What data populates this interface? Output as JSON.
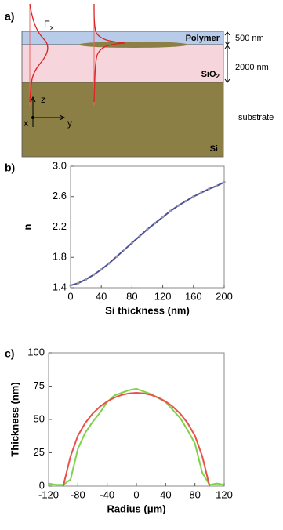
{
  "panel_labels": [
    "a)",
    "b)",
    "c)"
  ],
  "diagram": {
    "field_label": {
      "main": "E",
      "sub": "x"
    },
    "layers": [
      {
        "name": "Polymer",
        "thickness": "500 nm"
      },
      {
        "name": {
          "main": "SiO",
          "sub": "2"
        },
        "thickness": "2000 nm"
      },
      {
        "name": "Si",
        "thickness": "substrate"
      }
    ],
    "axes": [
      "z",
      "x",
      "y"
    ]
  },
  "chart_data": [
    {
      "type": "line",
      "xlabel": "Si thickness (nm)",
      "ylabel": "n",
      "x": [
        0,
        10,
        20,
        30,
        40,
        50,
        60,
        70,
        80,
        90,
        100,
        110,
        120,
        130,
        140,
        150,
        160,
        170,
        180,
        190,
        200
      ],
      "series": [
        {
          "color": "#4b4f9e",
          "marker_color": "#9a9a9a",
          "values": [
            1.43,
            1.46,
            1.51,
            1.57,
            1.64,
            1.72,
            1.81,
            1.9,
            1.99,
            2.08,
            2.17,
            2.25,
            2.33,
            2.41,
            2.48,
            2.54,
            2.6,
            2.65,
            2.7,
            2.74,
            2.79
          ]
        }
      ],
      "xlim": [
        0,
        200
      ],
      "xticks": [
        0,
        40,
        80,
        120,
        160,
        200
      ],
      "ylim": [
        1.4,
        3
      ],
      "yticks": [
        1.4,
        1.8,
        2.2,
        2.6,
        {
          "value": 3,
          "label": "3.0"
        }
      ]
    },
    {
      "type": "line",
      "xlabel": "Radius (μm)",
      "ylabel": "Thickness (nm)",
      "x": [
        -120,
        -110,
        -100,
        -90,
        -80,
        -70,
        -60,
        -50,
        -40,
        -30,
        -20,
        -10,
        0,
        10,
        20,
        30,
        40,
        50,
        60,
        70,
        80,
        90,
        100,
        110,
        120
      ],
      "series": [
        {
          "color": "#7ed348",
          "values": [
            2,
            1,
            1,
            5,
            28,
            40,
            48,
            55,
            63,
            68,
            70,
            72,
            73,
            71,
            69,
            66,
            63,
            57,
            51,
            42,
            32,
            10,
            1,
            2,
            1
          ]
        },
        {
          "color": "#e8504a",
          "values": [
            null,
            null,
            0,
            22.4,
            37.8,
            47.3,
            54.3,
            59.5,
            63.5,
            66.4,
            68.4,
            69.6,
            70,
            69.6,
            68.4,
            66.4,
            63.5,
            59.5,
            54.3,
            47.3,
            37.8,
            22.4,
            0,
            null,
            null
          ]
        }
      ],
      "xlim": [
        -120,
        120
      ],
      "xticks": [
        -120,
        -80,
        -40,
        0,
        40,
        80,
        120
      ],
      "ylim": [
        0,
        100
      ],
      "yticks": [
        0,
        25,
        50,
        75,
        100
      ]
    }
  ]
}
